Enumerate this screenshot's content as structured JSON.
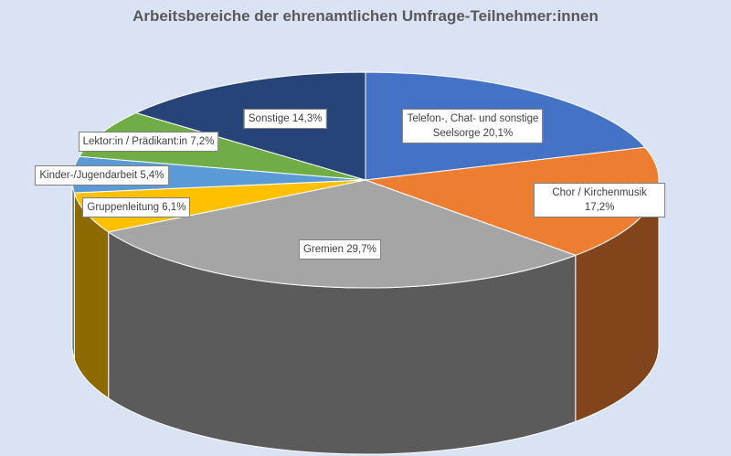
{
  "chart_data": {
    "type": "pie",
    "title": "Arbeitsbereiche der ehrenamtlichen Umfrage-Teilnehmer:innen",
    "slices": [
      {
        "label": "Telefon-, Chat- und sonstige Seelsorge",
        "display": "Telefon-, Chat- und sonstige\nSeelsorge 20,1%",
        "value": 20.1,
        "color": "#4472c4"
      },
      {
        "label": "Chor / Kirchenmusik",
        "display": "Chor / Kirchenmusik 17,2%",
        "value": 17.2,
        "color": "#ed7d31"
      },
      {
        "label": "Gremien",
        "display": "Gremien 29,7%",
        "value": 29.7,
        "color": "#a5a5a5"
      },
      {
        "label": "Gruppenleitung",
        "display": "Gruppenleitung 6,1%",
        "value": 6.1,
        "color": "#ffc000"
      },
      {
        "label": "Kinder-/Jugendarbeit",
        "display": "Kinder-/Jugendarbeit 5,4%",
        "value": 5.4,
        "color": "#5b9bd5"
      },
      {
        "label": "Lektor:in / Prädikant:in",
        "display": "Lektor:in / Prädikant:in 7,2%",
        "value": 7.2,
        "color": "#70ad47"
      },
      {
        "label": "Sonstige",
        "display": "Sonstige 14,3%",
        "value": 14.3,
        "color": "#264478"
      }
    ],
    "data_labels": "inside",
    "legend": "none",
    "style": "3d-pie",
    "background": "#dae3f3"
  }
}
